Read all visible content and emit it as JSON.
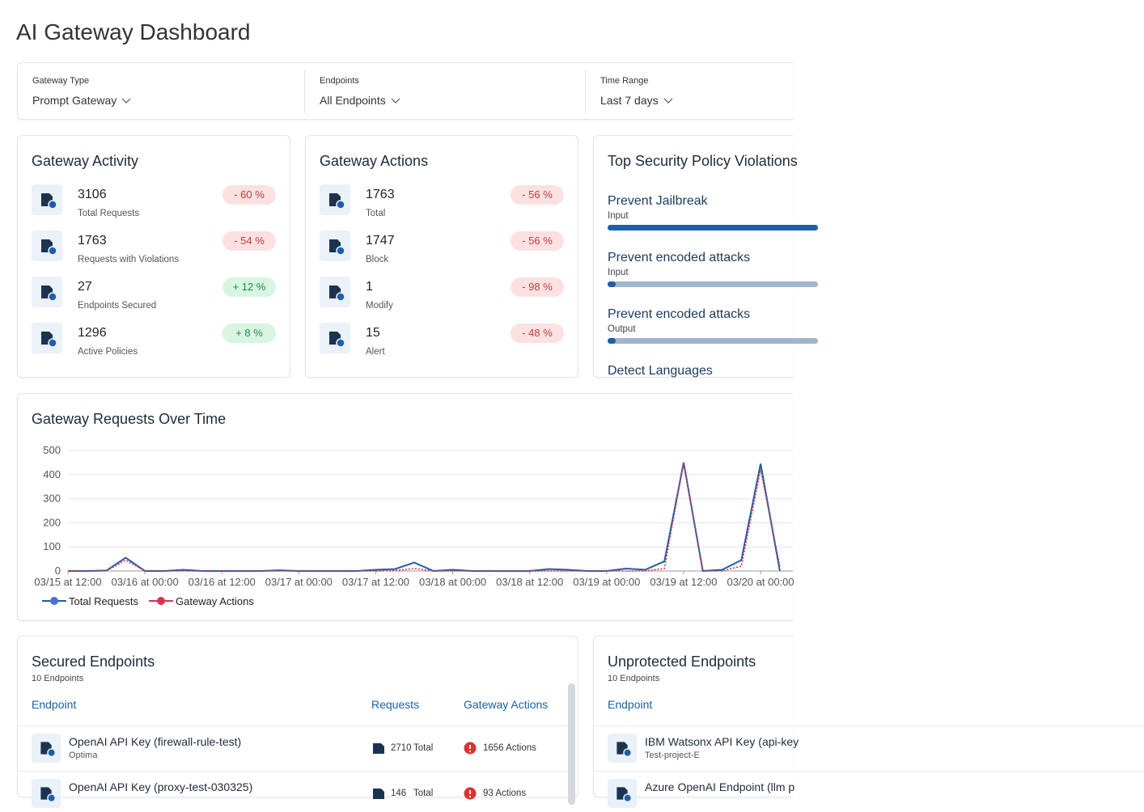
{
  "title": "AI Gateway Dashboard",
  "filters": [
    {
      "label": "Gateway Type",
      "value": "Prompt Gateway"
    },
    {
      "label": "Endpoints",
      "value": "All Endpoints"
    },
    {
      "label": "Time Range",
      "value": "Last 7 days"
    }
  ],
  "activity": {
    "title": "Gateway Activity",
    "items": [
      {
        "value": 3106,
        "label": "Total Requests",
        "change": "- 60 %"
      },
      {
        "value": 1763,
        "label": "Requests with Violations",
        "change": "- 54 %"
      },
      {
        "value": 27,
        "label": "Endpoints Secured",
        "change": "+ 12 %"
      },
      {
        "value": 1296,
        "label": "Active Policies",
        "change": "+ 8 %"
      }
    ]
  },
  "actions": {
    "title": "Gateway Actions",
    "items": [
      {
        "value": 1763,
        "label": "Total",
        "change": "- 56 %"
      },
      {
        "value": 1747,
        "label": "Block",
        "change": "- 56 %"
      },
      {
        "value": 1,
        "label": "Modify",
        "change": "- 98 %"
      },
      {
        "value": 15,
        "label": "Alert",
        "change": "- 48 %"
      }
    ]
  },
  "violations": {
    "title": "Top Security Policy Violations",
    "items": [
      {
        "name": "Prevent Jailbreak",
        "kind": "Input",
        "level": 100
      },
      {
        "name": "Prevent encoded attacks",
        "kind": "Input",
        "level": 2
      },
      {
        "name": "Prevent encoded attacks",
        "kind": "Output",
        "level": 2
      },
      {
        "name": "Detect Languages"
      }
    ]
  },
  "chart_data": {
    "type": "line",
    "title": "Gateway Requests Over Time",
    "categories": [
      "03/15 at 12:00",
      null,
      null,
      null,
      "03/16 at 00:00",
      null,
      null,
      null,
      "03/16 at 12:00",
      null,
      null,
      null,
      "03/17 at 00:00",
      null,
      null,
      null,
      "03/17 at 12:00",
      null,
      null,
      null,
      "03/18 at 00:00",
      null,
      null,
      null,
      "03/18 at 12:00",
      null,
      null,
      null,
      "03/19 at 00:00",
      null,
      null,
      null,
      "03/19 at 12:00",
      null,
      null,
      null,
      "03/20 at 00:00",
      null
    ],
    "series": [
      {
        "name": "Total Requests",
        "color": "#1f5fa6",
        "values": [
          0,
          0,
          2,
          55,
          0,
          0,
          5,
          0,
          0,
          0,
          0,
          3,
          0,
          0,
          0,
          0,
          5,
          8,
          35,
          0,
          5,
          0,
          0,
          0,
          0,
          8,
          5,
          0,
          0,
          10,
          5,
          40,
          450,
          0,
          5,
          45,
          445,
          0
        ]
      },
      {
        "name": "Gateway Actions",
        "color": "#d8334f",
        "values": [
          0,
          0,
          0,
          45,
          0,
          0,
          0,
          0,
          0,
          0,
          0,
          0,
          0,
          0,
          0,
          0,
          0,
          2,
          10,
          0,
          0,
          0,
          0,
          0,
          0,
          0,
          0,
          0,
          0,
          0,
          0,
          10,
          450,
          0,
          0,
          20,
          420,
          20
        ]
      }
    ],
    "ylim": [
      0,
      500
    ],
    "yticks": [
      0,
      100,
      200,
      300,
      400,
      500
    ],
    "grid": true
  },
  "secured": {
    "title": "Secured Endpoints",
    "subtitle": "10 Endpoints",
    "columns": [
      "Endpoint",
      "Requests",
      "Gateway Actions"
    ],
    "rows": [
      {
        "name": "OpenAI API Key (firewall-rule-test)",
        "project": "Optima",
        "requests": "2710",
        "requests_unit": "Total",
        "actions": "1656 Actions"
      },
      {
        "name": "OpenAI API Key (proxy-test-030325)",
        "requests": "146",
        "requests_unit": "Total",
        "actions": "93 Actions"
      }
    ]
  },
  "unprotected": {
    "title": "Unprotected Endpoints",
    "subtitle": "10 Endpoints",
    "columns": [
      "Endpoint"
    ],
    "rows": [
      {
        "name": "IBM Watsonx API Key (api-key",
        "project": "Test-project-E"
      },
      {
        "name": "Azure OpenAI Endpoint (llm p"
      }
    ]
  }
}
